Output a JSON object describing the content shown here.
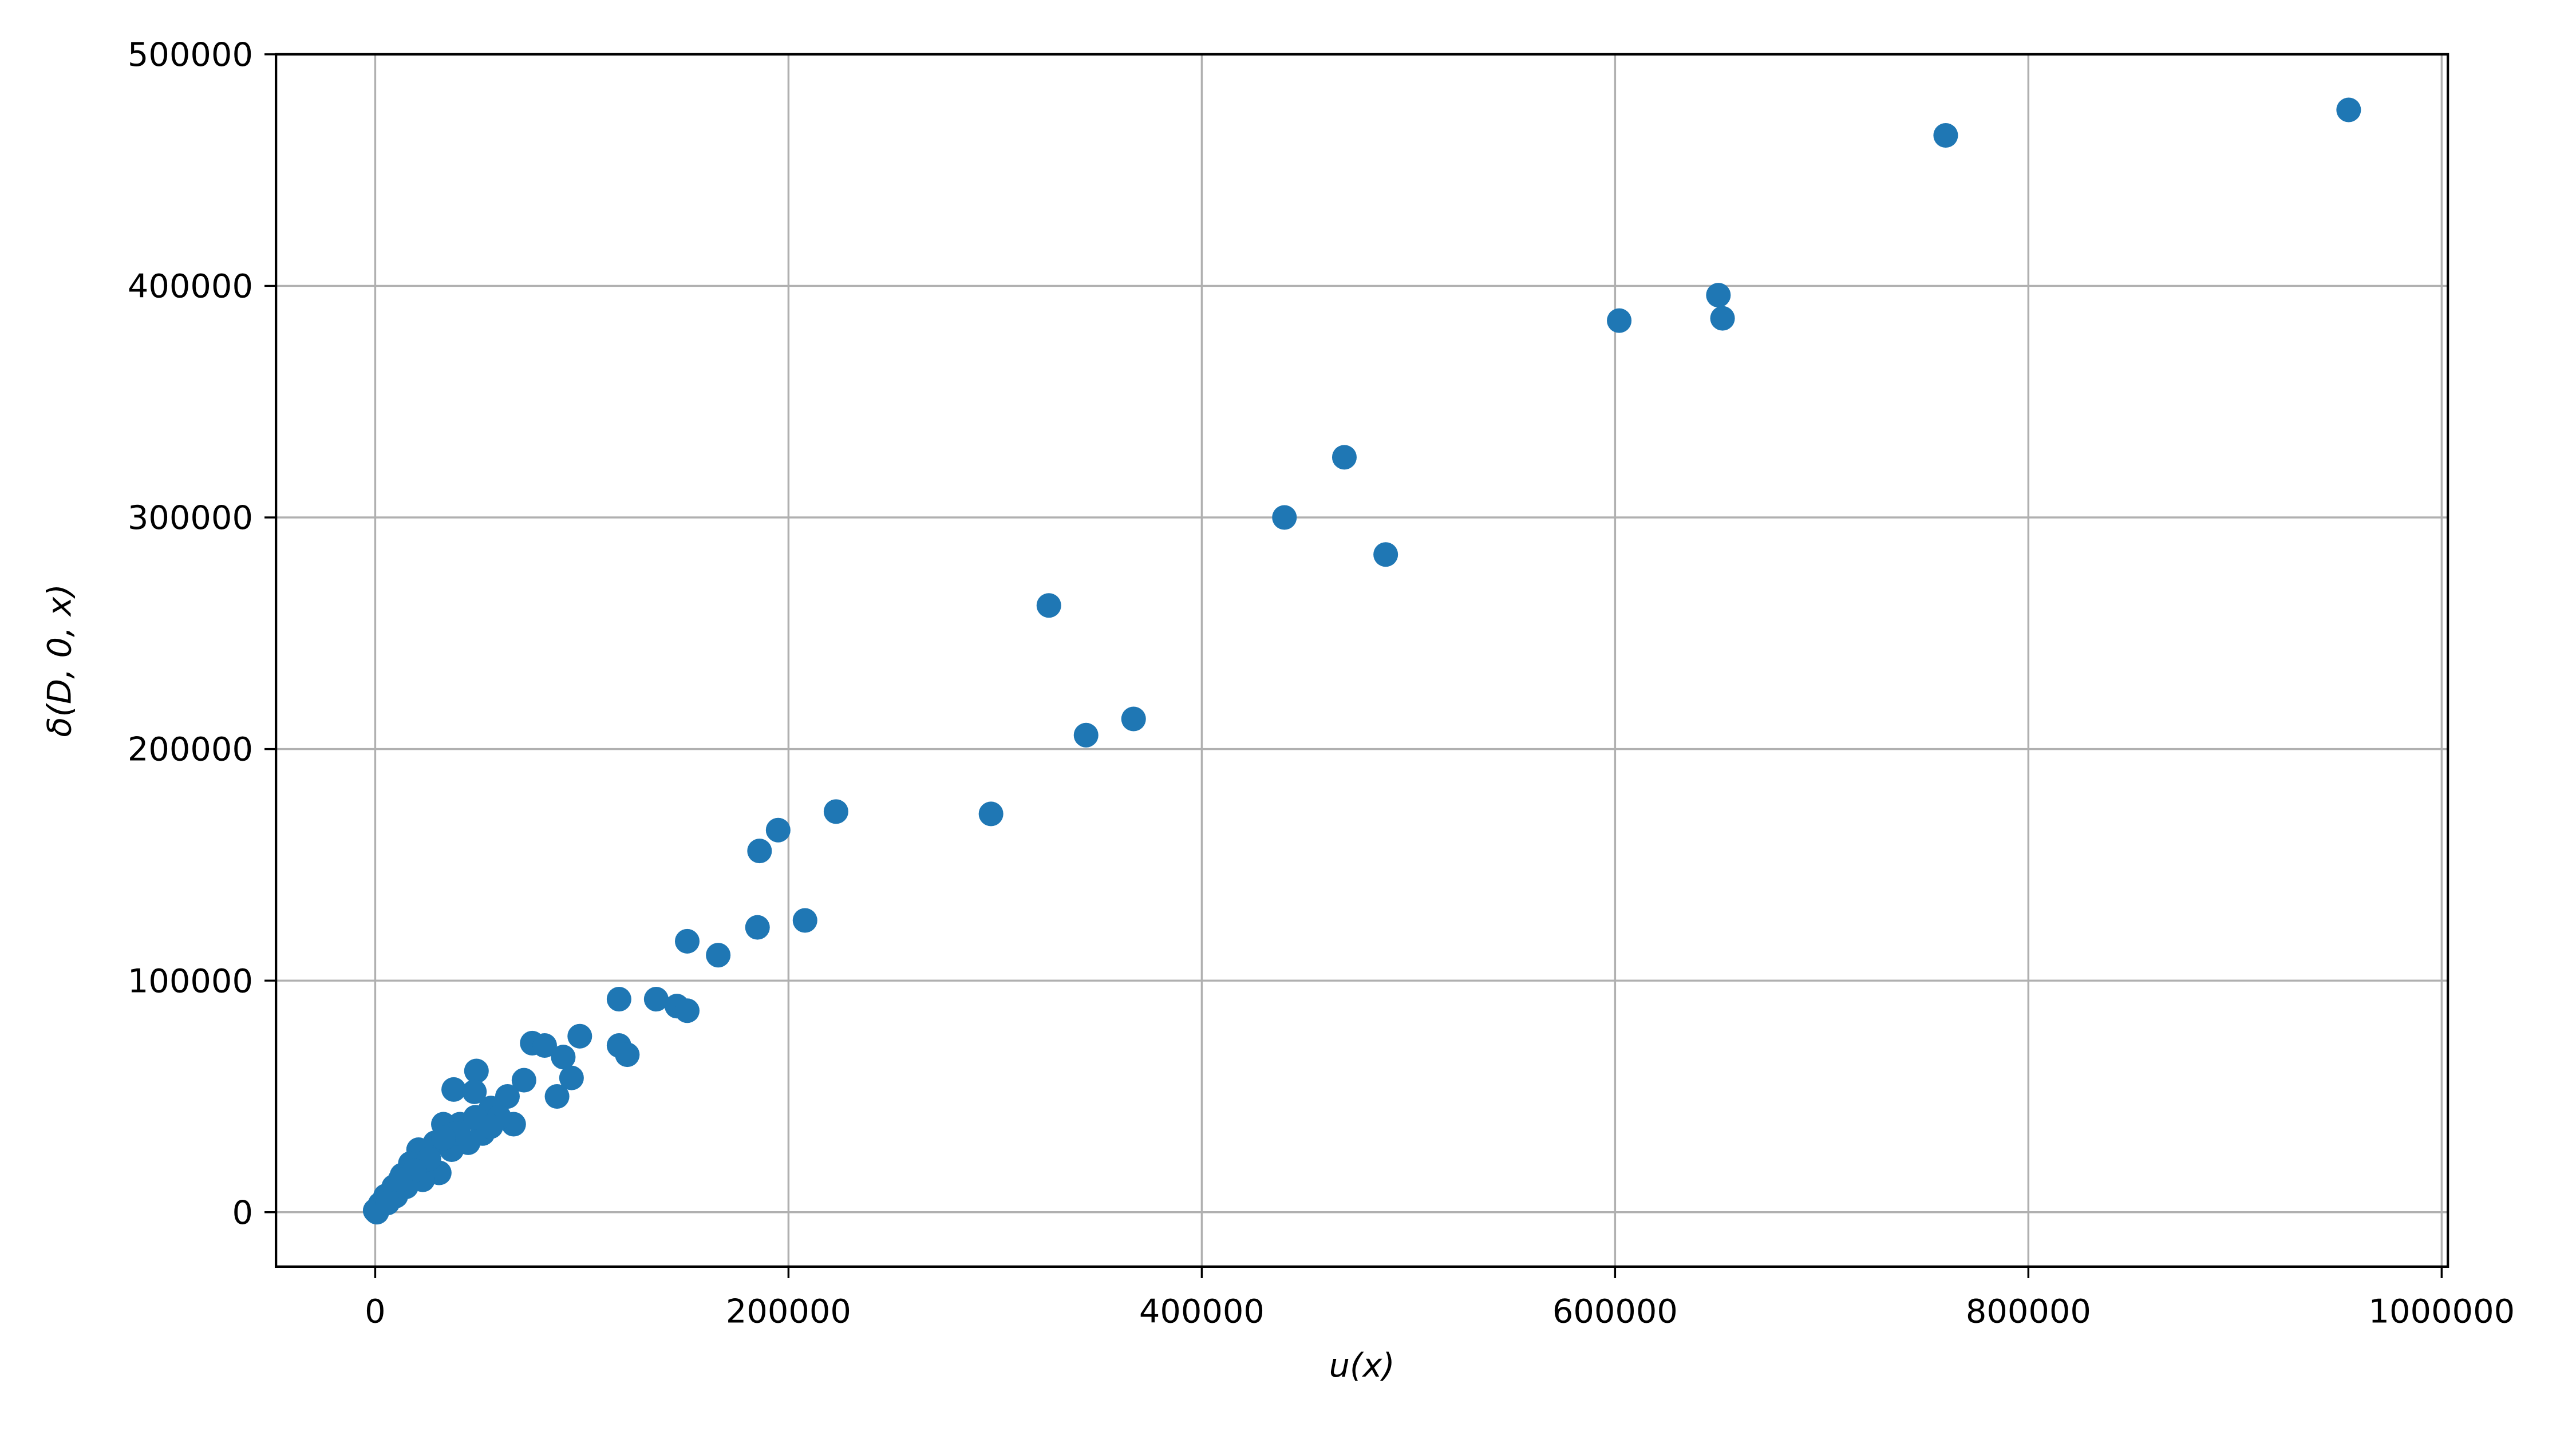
{
  "chart_data": {
    "type": "scatter",
    "xlabel": "u(x)",
    "ylabel": "δ(D, 0, x)",
    "color": "#1f77b4",
    "grid": true,
    "xlim": [
      -48000,
      1003000
    ],
    "ylim": [
      -23500,
      500000
    ],
    "xticks": [
      0,
      200000,
      400000,
      600000,
      800000,
      1000000
    ],
    "yticks": [
      0,
      100000,
      200000,
      300000,
      400000,
      500000
    ],
    "x": [
      955000,
      760000,
      650000,
      652000,
      602000,
      469000,
      440000,
      489000,
      326000,
      367000,
      344000,
      298000,
      223000,
      195000,
      186000,
      185000,
      208000,
      151000,
      166000,
      118000,
      136000,
      146000,
      151000,
      99000,
      76000,
      82000,
      118000,
      122000,
      91000,
      95000,
      88000,
      72000,
      49000,
      38000,
      48000,
      64000,
      67000,
      56000,
      41000,
      33000,
      29000,
      21000,
      17000,
      13000,
      9000,
      5000,
      2400,
      0,
      800,
      25000,
      31000,
      45000,
      52000,
      60000,
      48500,
      37000,
      23000,
      15000,
      10000,
      6000,
      39000,
      26000,
      19000,
      12000,
      33000,
      56000
    ],
    "y": [
      476000,
      465000,
      396000,
      386000,
      385000,
      326000,
      300000,
      284000,
      262000,
      213000,
      206000,
      172000,
      173000,
      165000,
      156000,
      123000,
      126000,
      117000,
      111000,
      92000,
      92000,
      89000,
      87000,
      76000,
      73000,
      72000,
      72000,
      68000,
      67000,
      58000,
      50000,
      57000,
      61000,
      53000,
      52000,
      50000,
      38000,
      45000,
      38000,
      38000,
      30000,
      27000,
      21000,
      16000,
      11000,
      7000,
      3500,
      700,
      0,
      18000,
      17000,
      30000,
      34000,
      41000,
      41000,
      27000,
      14000,
      11000,
      7000,
      4000,
      34000,
      23000,
      18000,
      14000,
      32000,
      37000
    ]
  }
}
